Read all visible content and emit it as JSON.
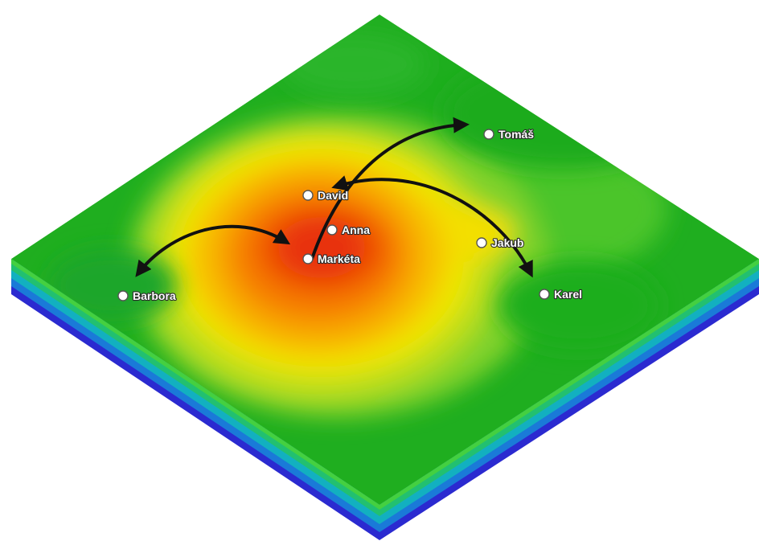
{
  "people": [
    {
      "id": "tomas",
      "name": "Tomáš"
    },
    {
      "id": "david",
      "name": "David"
    },
    {
      "id": "anna",
      "name": "Anna"
    },
    {
      "id": "jakub",
      "name": "Jakub"
    },
    {
      "id": "marketa",
      "name": "Markéta"
    },
    {
      "id": "barbora",
      "name": "Barbora"
    },
    {
      "id": "karel",
      "name": "Karel"
    }
  ],
  "connections": [
    {
      "from": "marketa",
      "to": "tomas",
      "direction": "to"
    },
    {
      "from": "marketa",
      "to": "barbora",
      "direction": "both"
    },
    {
      "from": "david",
      "to": "karel",
      "direction": "both"
    }
  ],
  "colors": {
    "surface_low": "#1fae1f",
    "surface_mid": "#f2e600",
    "surface_high": "#e8300a",
    "base_edge": "#3a22c8",
    "arrow": "#111111"
  }
}
